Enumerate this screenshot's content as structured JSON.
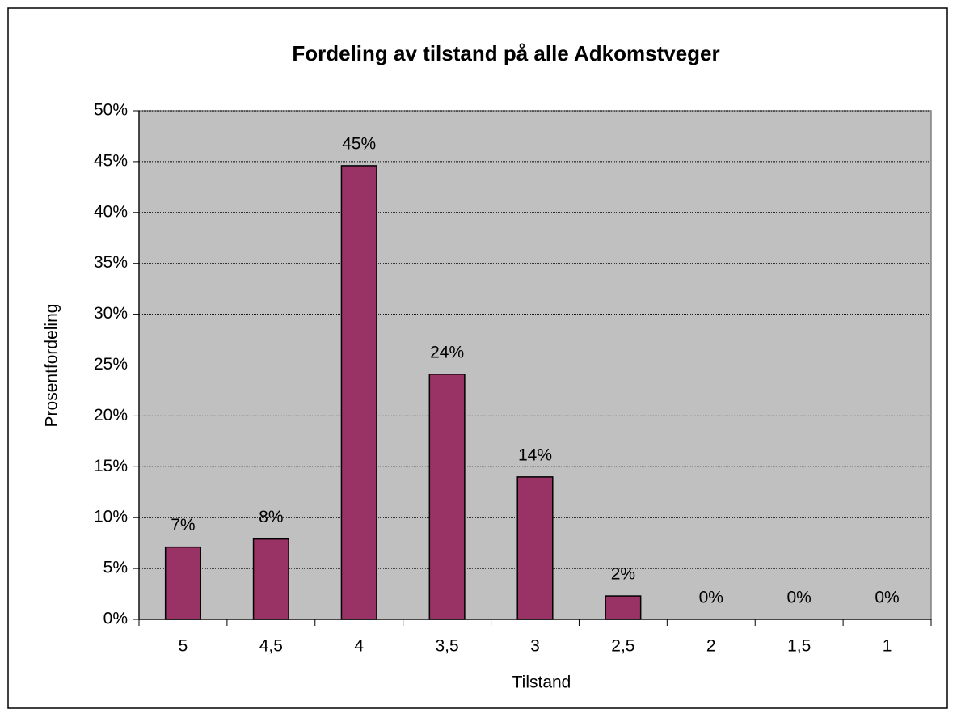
{
  "chart_data": {
    "type": "bar",
    "title": "Fordeling av tilstand på alle Adkomstveger",
    "x_label": "Tilstand",
    "y_label": "Prosentfordeling",
    "categories": [
      "5",
      "4,5",
      "4",
      "3,5",
      "3",
      "2,5",
      "2",
      "1,5",
      "1"
    ],
    "values": [
      7.1,
      7.9,
      44.6,
      24.1,
      14.0,
      2.3,
      0,
      0,
      0
    ],
    "value_labels": [
      "7%",
      "8%",
      "45%",
      "24%",
      "14%",
      "2%",
      "0%",
      "0%",
      "0%"
    ],
    "color": "#993366",
    "ylim": [
      0,
      50
    ],
    "yticks": [
      {
        "value": 0,
        "label": "0%"
      },
      {
        "value": 5,
        "label": "5%"
      },
      {
        "value": 10,
        "label": "10%"
      },
      {
        "value": 15,
        "label": "15%"
      },
      {
        "value": 20,
        "label": "20%"
      },
      {
        "value": 25,
        "label": "25%"
      },
      {
        "value": 30,
        "label": "30%"
      },
      {
        "value": 35,
        "label": "35%"
      },
      {
        "value": 40,
        "label": "40%"
      },
      {
        "value": 45,
        "label": "45%"
      },
      {
        "value": 50,
        "label": "50%"
      }
    ],
    "grid": true
  }
}
